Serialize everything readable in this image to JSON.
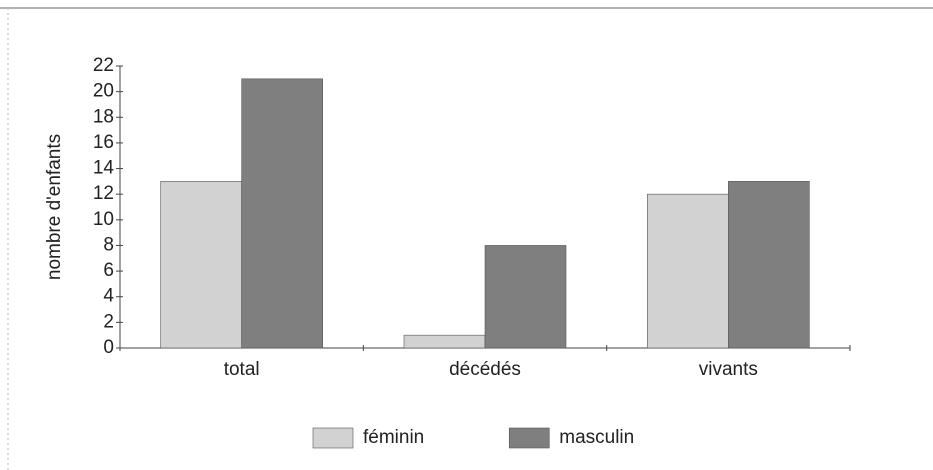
{
  "chart_data": {
    "type": "bar",
    "y_label": "nombre d'enfants",
    "categories": [
      "total",
      "décédés",
      "vivants"
    ],
    "series": [
      {
        "name": "féminin",
        "color": "#d2d2d2",
        "values": [
          13,
          1,
          12
        ]
      },
      {
        "name": "masculin",
        "color": "#7f7f7f",
        "values": [
          21,
          8,
          13
        ]
      }
    ],
    "ylim": [
      0,
      22
    ],
    "yticks": [
      0,
      2,
      4,
      6,
      8,
      10,
      12,
      14,
      16,
      18,
      20,
      22
    ],
    "legend": "bottom"
  }
}
